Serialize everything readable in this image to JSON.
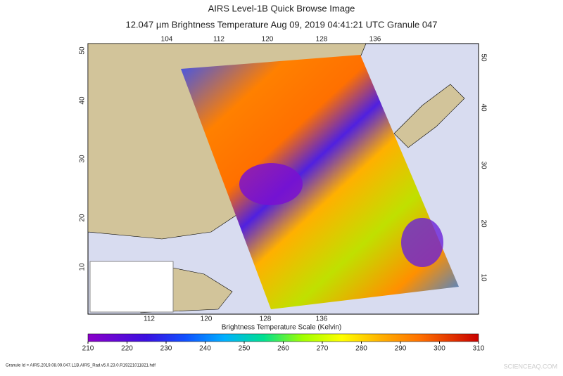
{
  "header": {
    "title": "AIRS Level-1B Quick Browse Image",
    "subtitle": "12.047 µm Brightness Temperature    Aug 09, 2019 04:41:21 UTC   Granule 047"
  },
  "map": {
    "lon_labels_top": [
      "104",
      "112",
      "120",
      "128",
      "136"
    ],
    "lon_labels_bottom": [
      "112",
      "120",
      "128",
      "136"
    ],
    "lat_labels_left": [
      "50",
      "40",
      "30",
      "20",
      "10"
    ],
    "lat_labels_right": [
      "50",
      "40",
      "30",
      "20",
      "10"
    ]
  },
  "colorbar": {
    "title": "Brightness Temperature Scale (Kelvin)",
    "range": [
      210,
      310
    ],
    "ticks": [
      210,
      220,
      230,
      240,
      250,
      260,
      270,
      280,
      290,
      300,
      310
    ]
  },
  "footer": {
    "granule_id": "Granule Id = AIRS.2019.08.09.047.L1B.AIRS_Rad.v5.0.23.0.R19221011821.hdf",
    "watermark": "SCIENCEAQ.COM"
  }
}
